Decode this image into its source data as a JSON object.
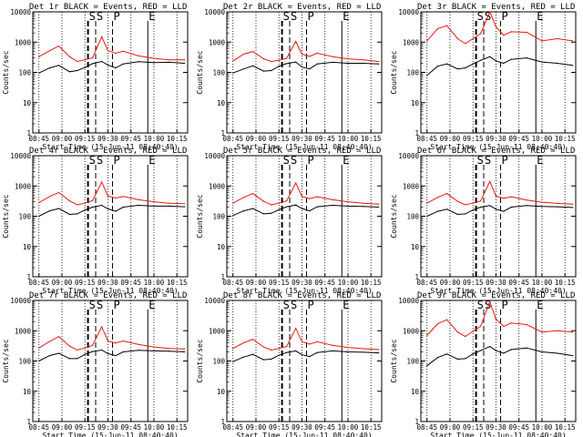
{
  "figure": {
    "title_suffix": "BLACK = Events, RED = LLD",
    "ylabel": "Counts/sec",
    "xlabel": "Start Time (15-Jun-11 08:40:40)",
    "series_names": [
      "Events",
      "LLD"
    ],
    "series_colors": {
      "Events": "#000000",
      "LLD": "#e8190f"
    },
    "xticks": [
      "08:45",
      "09:00",
      "09:15",
      "09:30",
      "09:45",
      "10:00",
      "10:15"
    ],
    "yticks": [
      "1",
      "10",
      "100",
      "1000",
      "10000"
    ],
    "markers": [
      {
        "label": "S",
        "time": "09:17"
      },
      {
        "label": "S",
        "time": "09:22"
      },
      {
        "label": "P",
        "time": "09:33"
      },
      {
        "label": "E",
        "time": "09:56"
      }
    ]
  },
  "chart_data": [
    {
      "type": "line",
      "title": "Det 1r",
      "xlabel": "Start Time (15-Jun-11 08:40:40)",
      "ylabel": "Counts/sec",
      "yscale": "log",
      "ylim": [
        1,
        10000
      ],
      "x": [
        "08:45",
        "08:52",
        "08:58",
        "09:05",
        "09:10",
        "09:15",
        "09:20",
        "09:26",
        "09:30",
        "09:35",
        "09:40",
        "09:50",
        "10:00",
        "10:10",
        "10:20"
      ],
      "series": [
        {
          "name": "Events",
          "values": [
            95,
            140,
            170,
            105,
            115,
            145,
            195,
            230,
            175,
            140,
            190,
            225,
            210,
            215,
            200
          ]
        },
        {
          "name": "LLD",
          "values": [
            330,
            520,
            740,
            330,
            230,
            260,
            300,
            1500,
            520,
            430,
            500,
            350,
            290,
            260,
            260
          ]
        }
      ]
    },
    {
      "type": "line",
      "title": "Det 2r",
      "xlabel": "Start Time (15-Jun-11 08:40:40)",
      "ylabel": "Counts/sec",
      "yscale": "log",
      "ylim": [
        1,
        10000
      ],
      "x": [
        "08:45",
        "08:52",
        "08:58",
        "09:05",
        "09:10",
        "09:15",
        "09:20",
        "09:26",
        "09:30",
        "09:35",
        "09:40",
        "09:50",
        "10:00",
        "10:10",
        "10:20"
      ],
      "series": [
        {
          "name": "Events",
          "values": [
            95,
            130,
            165,
            110,
            115,
            160,
            195,
            220,
            150,
            130,
            190,
            215,
            200,
            200,
            190
          ]
        },
        {
          "name": "LLD",
          "values": [
            240,
            400,
            490,
            280,
            230,
            250,
            290,
            1050,
            400,
            340,
            430,
            330,
            280,
            260,
            230
          ]
        }
      ]
    },
    {
      "type": "line",
      "title": "Det 3r",
      "xlabel": "Start Time (15-Jun-11 08:40:40)",
      "ylabel": "Counts/sec",
      "yscale": "log",
      "ylim": [
        1,
        10000
      ],
      "x": [
        "08:45",
        "08:52",
        "08:58",
        "09:05",
        "09:10",
        "09:15",
        "09:20",
        "09:26",
        "09:30",
        "09:35",
        "09:40",
        "09:50",
        "10:00",
        "10:10",
        "10:20"
      ],
      "series": [
        {
          "name": "Events",
          "values": [
            80,
            160,
            190,
            130,
            140,
            190,
            250,
            330,
            240,
            200,
            270,
            300,
            220,
            200,
            170
          ]
        },
        {
          "name": "LLD",
          "values": [
            1100,
            2800,
            3500,
            1300,
            900,
            1300,
            1900,
            10000,
            3200,
            1700,
            2200,
            2100,
            1100,
            1300,
            1100
          ]
        }
      ]
    },
    {
      "type": "line",
      "title": "Det 4r",
      "xlabel": "Start Time (15-Jun-11 08:40:40)",
      "ylabel": "Counts/sec",
      "yscale": "log",
      "ylim": [
        1,
        10000
      ],
      "x": [
        "08:45",
        "08:52",
        "08:58",
        "09:05",
        "09:10",
        "09:15",
        "09:20",
        "09:26",
        "09:30",
        "09:35",
        "09:40",
        "09:50",
        "10:00",
        "10:10",
        "10:20"
      ],
      "series": [
        {
          "name": "Events",
          "values": [
            100,
            150,
            180,
            115,
            120,
            160,
            200,
            230,
            175,
            145,
            200,
            230,
            215,
            215,
            205
          ]
        },
        {
          "name": "LLD",
          "values": [
            280,
            450,
            610,
            320,
            240,
            270,
            330,
            1350,
            470,
            400,
            450,
            350,
            300,
            270,
            260
          ]
        }
      ]
    },
    {
      "type": "line",
      "title": "Det 5r",
      "xlabel": "Start Time (15-Jun-11 08:40:40)",
      "ylabel": "Counts/sec",
      "yscale": "log",
      "ylim": [
        1,
        10000
      ],
      "x": [
        "08:45",
        "08:52",
        "08:58",
        "09:05",
        "09:10",
        "09:15",
        "09:20",
        "09:26",
        "09:30",
        "09:35",
        "09:40",
        "09:50",
        "10:00",
        "10:10",
        "10:20"
      ],
      "series": [
        {
          "name": "Events",
          "values": [
            105,
            150,
            180,
            120,
            125,
            165,
            205,
            235,
            180,
            150,
            205,
            230,
            215,
            210,
            200
          ]
        },
        {
          "name": "LLD",
          "values": [
            270,
            420,
            560,
            310,
            240,
            270,
            320,
            1250,
            450,
            380,
            440,
            350,
            300,
            270,
            250
          ]
        }
      ]
    },
    {
      "type": "line",
      "title": "Det 6r",
      "xlabel": "Start Time (15-Jun-11 08:40:40)",
      "ylabel": "Counts/sec",
      "yscale": "log",
      "ylim": [
        1,
        10000
      ],
      "x": [
        "08:45",
        "08:52",
        "08:58",
        "09:05",
        "09:10",
        "09:15",
        "09:20",
        "09:26",
        "09:30",
        "09:35",
        "09:40",
        "09:50",
        "10:00",
        "10:10",
        "10:20"
      ],
      "series": [
        {
          "name": "Events",
          "values": [
            100,
            145,
            170,
            115,
            120,
            160,
            200,
            225,
            170,
            145,
            200,
            225,
            210,
            205,
            195
          ]
        },
        {
          "name": "LLD",
          "values": [
            270,
            420,
            560,
            310,
            240,
            270,
            320,
            1400,
            470,
            390,
            440,
            340,
            290,
            265,
            250
          ]
        }
      ]
    },
    {
      "type": "line",
      "title": "Det 7r",
      "xlabel": "Start Time (15-Jun-11 08:40:40)",
      "ylabel": "Counts/sec",
      "yscale": "log",
      "ylim": [
        1,
        10000
      ],
      "x": [
        "08:45",
        "08:52",
        "08:58",
        "09:05",
        "09:10",
        "09:15",
        "09:20",
        "09:26",
        "09:30",
        "09:35",
        "09:40",
        "09:50",
        "10:00",
        "10:10",
        "10:20"
      ],
      "series": [
        {
          "name": "Events",
          "values": [
            100,
            150,
            180,
            120,
            120,
            165,
            205,
            230,
            175,
            150,
            200,
            225,
            215,
            210,
            200
          ]
        },
        {
          "name": "LLD",
          "values": [
            270,
            440,
            640,
            310,
            230,
            270,
            330,
            1350,
            460,
            390,
            460,
            350,
            290,
            260,
            250
          ]
        }
      ]
    },
    {
      "type": "line",
      "title": "Det 8r",
      "xlabel": "Start Time (15-Jun-11 08:40:40)",
      "ylabel": "Counts/sec",
      "yscale": "log",
      "ylim": [
        1,
        10000
      ],
      "x": [
        "08:45",
        "08:52",
        "08:58",
        "09:05",
        "09:10",
        "09:15",
        "09:20",
        "09:26",
        "09:30",
        "09:35",
        "09:40",
        "09:50",
        "10:00",
        "10:10",
        "10:20"
      ],
      "series": [
        {
          "name": "Events",
          "values": [
            95,
            135,
            165,
            110,
            115,
            155,
            190,
            215,
            160,
            140,
            190,
            215,
            200,
            195,
            185
          ]
        },
        {
          "name": "LLD",
          "values": [
            260,
            400,
            520,
            290,
            230,
            260,
            300,
            1200,
            430,
            360,
            430,
            330,
            280,
            255,
            240
          ]
        }
      ]
    },
    {
      "type": "line",
      "title": "Det 9r",
      "xlabel": "Start Time (15-Jun-11 08:40:40)",
      "ylabel": "Counts/sec",
      "yscale": "log",
      "ylim": [
        1,
        10000
      ],
      "x": [
        "08:45",
        "08:52",
        "08:58",
        "09:05",
        "09:10",
        "09:15",
        "09:20",
        "09:26",
        "09:30",
        "09:35",
        "09:40",
        "09:50",
        "10:00",
        "10:10",
        "10:20"
      ],
      "series": [
        {
          "name": "Events",
          "values": [
            70,
            130,
            170,
            115,
            120,
            170,
            220,
            300,
            220,
            180,
            240,
            270,
            200,
            180,
            150
          ]
        },
        {
          "name": "LLD",
          "values": [
            700,
            1700,
            2300,
            900,
            650,
            950,
            1400,
            9000,
            2400,
            1400,
            1800,
            1600,
            900,
            1000,
            900
          ]
        }
      ]
    }
  ]
}
